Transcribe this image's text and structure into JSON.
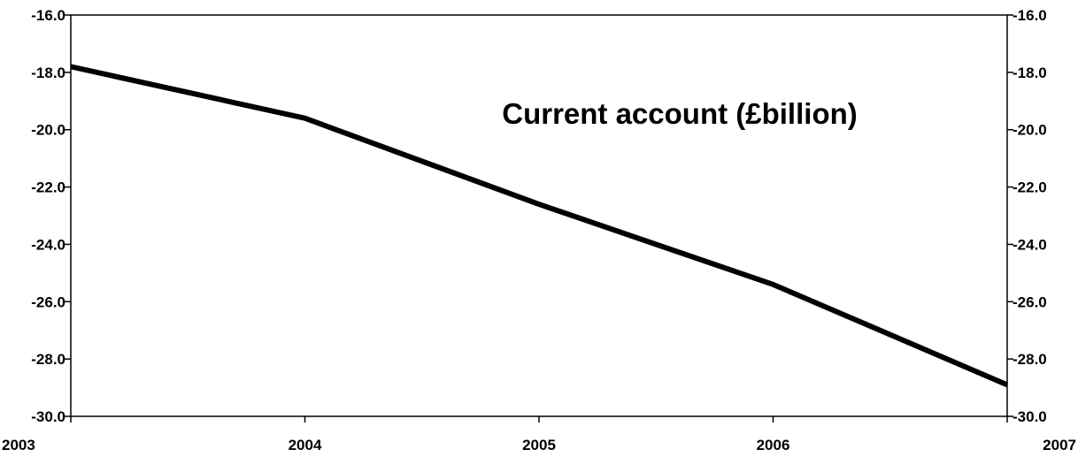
{
  "chart_data": {
    "type": "line",
    "title": "Current account (£billion)",
    "xlabel": "",
    "ylabel": "",
    "x": [
      2003,
      2004,
      2005,
      2006,
      2007
    ],
    "x_tick_labels": [
      "2003",
      "2004",
      "2005",
      "2006",
      "2007"
    ],
    "series": [
      {
        "values": [
          -17.8,
          -19.6,
          -22.6,
          -25.4,
          -28.9
        ]
      }
    ],
    "ylim": [
      -30.0,
      -16.0
    ],
    "y_ticks": [
      -16.0,
      -18.0,
      -20.0,
      -22.0,
      -24.0,
      -26.0,
      -28.0,
      -30.0
    ],
    "y_tick_labels": [
      "-16.0",
      "-18.0",
      "-20.0",
      "-22.0",
      "-24.0",
      "-26.0",
      "-28.0",
      "-30.0"
    ],
    "y_axis_right_mirror": true,
    "grid": false,
    "line_color": "#000000"
  }
}
